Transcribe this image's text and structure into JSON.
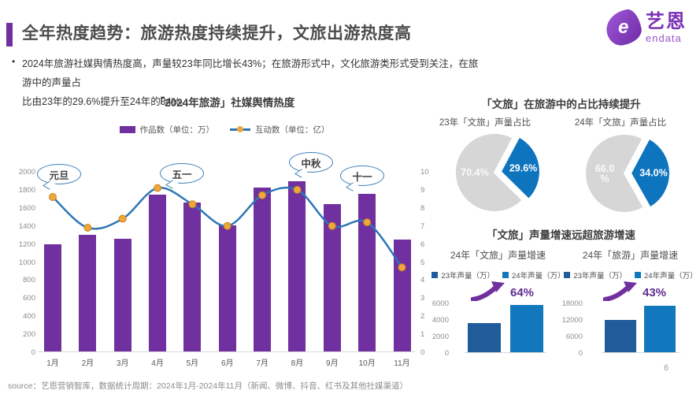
{
  "header": {
    "title": "全年热度趋势：旅游热度持续提升，文旅出游热度高",
    "accent_color": "#7030A0"
  },
  "logo": {
    "name": "艺恩",
    "sub": "endata",
    "mark": "e"
  },
  "bullet": {
    "marker": "•",
    "line1": "2024年旅游社媒舆情热度高，声量较23年同比增长43%；在旅游形式中，文化旅游类形式受到关注，在旅游中的声量占",
    "line2": "比由23年的29.6%提升至24年的34%。"
  },
  "right_panel": {
    "section1_title": "「文旅」在旅游中的占比持续提升",
    "section2_title": "「文旅」声量增速远超旅游增速"
  },
  "chart_data": [
    {
      "id": "main_combo",
      "type": "bar+line",
      "title": "「2024年旅游」社媒舆情热度",
      "categories": [
        "1月",
        "2月",
        "3月",
        "4月",
        "5月",
        "6月",
        "7月",
        "8月",
        "9月",
        "10月",
        "11月"
      ],
      "series": [
        {
          "name": "作品数（单位：万）",
          "type": "bar",
          "axis": "left",
          "color": "#7030A0",
          "values": [
            1190,
            1290,
            1250,
            1740,
            1650,
            1400,
            1820,
            1890,
            1630,
            1750,
            1240
          ]
        },
        {
          "name": "互动数（单位：亿）",
          "type": "line",
          "axis": "right",
          "color": "#2E75B6",
          "marker_color": "#EFA63C",
          "values": [
            8.6,
            6.9,
            7.4,
            9.1,
            8.2,
            7.0,
            8.7,
            9.0,
            7.0,
            7.2,
            4.7
          ]
        }
      ],
      "left_axis": {
        "min": 0,
        "max": 2000,
        "step": 200
      },
      "right_axis": {
        "min": 0,
        "max": 10,
        "step": 1
      },
      "grid": false,
      "annotations": [
        {
          "label": "元旦",
          "near": "1月"
        },
        {
          "label": "五一",
          "near": "4月"
        },
        {
          "label": "中秋",
          "near": "8月"
        },
        {
          "label": "十一",
          "near": "10月"
        }
      ]
    },
    {
      "id": "pie_23",
      "type": "pie",
      "title": "23年「文旅」声量占比",
      "slices": [
        {
          "name": "其他",
          "value": 70.4,
          "label_lines": [
            "70.4%"
          ],
          "color": "#D6D6D6"
        },
        {
          "name": "文旅",
          "value": 29.6,
          "label_lines": [
            "29.6%"
          ],
          "color": "#0E74BE",
          "exploded": true
        }
      ]
    },
    {
      "id": "pie_24",
      "type": "pie",
      "title": "24年「文旅」声量占比",
      "slices": [
        {
          "name": "其他",
          "value": 66.0,
          "label_lines": [
            "66.0",
            "%"
          ],
          "color": "#D6D6D6"
        },
        {
          "name": "文旅",
          "value": 34.0,
          "label_lines": [
            "34.0%"
          ],
          "color": "#0E74BE",
          "exploded": true
        }
      ]
    },
    {
      "id": "mini_wenlv",
      "type": "bar",
      "title": "24年「文旅」声量增速",
      "growth_label": "64%",
      "series": [
        {
          "name": "23年声量（万）",
          "color": "#1F5C99",
          "value": 3500
        },
        {
          "name": "24年声量（万）",
          "color": "#1278BE",
          "value": 5700
        }
      ],
      "ylim": [
        0,
        6000
      ],
      "yticks": [
        0,
        2000,
        4000,
        6000
      ]
    },
    {
      "id": "mini_lvyou",
      "type": "bar",
      "title": "24年「旅游」声量增速",
      "growth_label": "43%",
      "series": [
        {
          "name": "23年声量（万）",
          "color": "#1F5C99",
          "value": 11800
        },
        {
          "name": "24年声量（万）",
          "color": "#1278BE",
          "value": 16900
        }
      ],
      "ylim": [
        0,
        18000
      ],
      "yticks": [
        0,
        6000,
        12000,
        18000
      ]
    }
  ],
  "footer": {
    "source": "source：艺恩营销智库，数据统计周期：2024年1月-2024年11月（新闻、微博、抖音、红书及其他社媒渠道）",
    "page": "6"
  }
}
